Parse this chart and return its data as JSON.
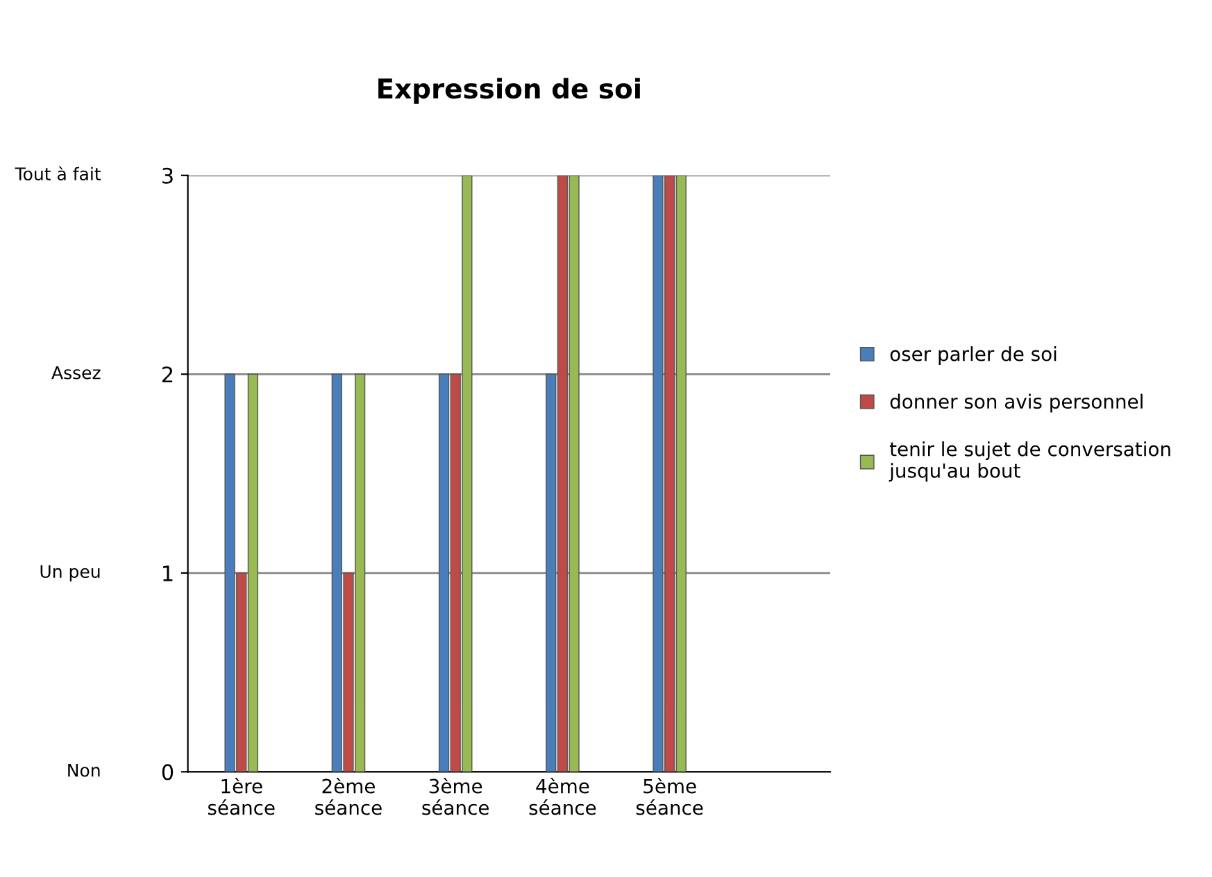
{
  "chart_data": {
    "type": "bar",
    "title": "Expression de soi",
    "categories": [
      "1ère\nséance",
      "2ème\nséance",
      "3ème\nséance",
      "4ème\nséance",
      "5ème\nséance",
      null
    ],
    "series": [
      {
        "name": "oser parler de soi",
        "color": "#4a7ebb",
        "values": [
          2,
          2,
          2,
          2,
          3,
          null
        ]
      },
      {
        "name": "donner son avis personnel",
        "color": "#be4b48",
        "values": [
          1,
          1,
          2,
          3,
          3,
          null
        ]
      },
      {
        "name": "tenir le sujet de conversation\njusqu'au bout",
        "color": "#98b954",
        "values": [
          2,
          2,
          3,
          3,
          3,
          null
        ]
      }
    ],
    "ylim": [
      0,
      3
    ],
    "yticks": [
      0,
      1,
      2,
      3
    ],
    "annotations": [
      "Non",
      "Un peu",
      "Assez",
      "Tout à fait"
    ],
    "grid": "y",
    "legend": "right"
  }
}
